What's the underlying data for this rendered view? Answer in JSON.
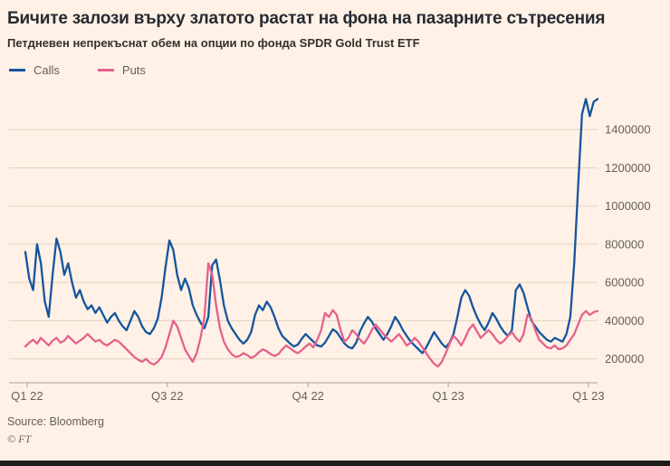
{
  "footer": {
    "source": "Source: Bloomberg",
    "copyright": "© FT"
  },
  "chart_data": {
    "type": "line",
    "title": "Бичите залози върху златото растат на фона на пазарните сътресения",
    "subtitle": "Петдневен непрекъснат обем на опции по фонда SPDR Gold Trust ETF",
    "xlabel": "",
    "ylabel": "",
    "grid": "horizontal",
    "legend_position": "top-left",
    "y_axis_side": "right",
    "ylim": [
      75000,
      1600000
    ],
    "yticks": [
      200000,
      400000,
      600000,
      800000,
      1000000,
      1200000,
      1400000
    ],
    "xticks": [
      {
        "label": "Q1 22",
        "pos": 0.003
      },
      {
        "label": "Q3 22",
        "pos": 0.248
      },
      {
        "label": "Q4 22",
        "pos": 0.494
      },
      {
        "label": "Q1 23",
        "pos": 0.739
      },
      {
        "label": "Q1 23",
        "pos": 0.984
      }
    ],
    "colors": {
      "background": "#FFF1E5",
      "grid": "#E3D2C1",
      "axis": "#A99E93",
      "labels": "#66605C"
    },
    "series": [
      {
        "name": "Calls",
        "color": "#14559F",
        "values": [
          760000,
          620000,
          560000,
          800000,
          700000,
          500000,
          420000,
          640000,
          830000,
          760000,
          640000,
          700000,
          600000,
          520000,
          560000,
          500000,
          460000,
          480000,
          440000,
          470000,
          430000,
          390000,
          420000,
          440000,
          400000,
          370000,
          350000,
          400000,
          450000,
          420000,
          370000,
          340000,
          330000,
          360000,
          410000,
          520000,
          680000,
          820000,
          770000,
          640000,
          560000,
          620000,
          570000,
          480000,
          430000,
          390000,
          360000,
          420000,
          690000,
          720000,
          610000,
          480000,
          400000,
          360000,
          330000,
          300000,
          280000,
          300000,
          340000,
          430000,
          480000,
          455000,
          500000,
          470000,
          420000,
          360000,
          320000,
          300000,
          280000,
          265000,
          275000,
          305000,
          330000,
          310000,
          290000,
          270000,
          265000,
          285000,
          320000,
          355000,
          340000,
          310000,
          280000,
          262000,
          255000,
          285000,
          345000,
          385000,
          420000,
          395000,
          360000,
          330000,
          300000,
          330000,
          370000,
          420000,
          390000,
          350000,
          320000,
          290000,
          270000,
          250000,
          230000,
          260000,
          300000,
          340000,
          310000,
          280000,
          260000,
          285000,
          330000,
          420000,
          520000,
          560000,
          530000,
          470000,
          420000,
          380000,
          350000,
          390000,
          440000,
          410000,
          370000,
          340000,
          320000,
          350000,
          560000,
          590000,
          545000,
          470000,
          400000,
          370000,
          340000,
          320000,
          300000,
          290000,
          310000,
          300000,
          290000,
          330000,
          420000,
          700000,
          1100000,
          1480000,
          1560000,
          1470000,
          1545000,
          1560000
        ]
      },
      {
        "name": "Puts",
        "color": "#E5618D",
        "values": [
          265000,
          285000,
          300000,
          280000,
          310000,
          290000,
          270000,
          295000,
          310000,
          285000,
          295000,
          320000,
          300000,
          280000,
          295000,
          310000,
          330000,
          310000,
          290000,
          300000,
          280000,
          270000,
          285000,
          300000,
          290000,
          270000,
          250000,
          230000,
          210000,
          195000,
          185000,
          200000,
          180000,
          170000,
          185000,
          210000,
          260000,
          330000,
          400000,
          370000,
          310000,
          250000,
          215000,
          185000,
          230000,
          310000,
          420000,
          700000,
          640000,
          480000,
          360000,
          290000,
          250000,
          225000,
          210000,
          215000,
          230000,
          220000,
          205000,
          215000,
          235000,
          250000,
          240000,
          225000,
          215000,
          225000,
          250000,
          270000,
          255000,
          240000,
          230000,
          245000,
          265000,
          280000,
          260000,
          300000,
          350000,
          440000,
          420000,
          455000,
          430000,
          350000,
          290000,
          310000,
          350000,
          330000,
          300000,
          280000,
          310000,
          350000,
          380000,
          355000,
          330000,
          310000,
          290000,
          310000,
          330000,
          300000,
          270000,
          285000,
          310000,
          290000,
          260000,
          230000,
          200000,
          175000,
          160000,
          185000,
          230000,
          280000,
          320000,
          300000,
          270000,
          310000,
          355000,
          380000,
          345000,
          310000,
          330000,
          350000,
          330000,
          300000,
          280000,
          295000,
          320000,
          340000,
          310000,
          290000,
          330000,
          430000,
          410000,
          350000,
          300000,
          280000,
          260000,
          255000,
          270000,
          250000,
          255000,
          270000,
          300000,
          330000,
          380000,
          430000,
          450000,
          430000,
          445000,
          450000
        ]
      }
    ]
  }
}
